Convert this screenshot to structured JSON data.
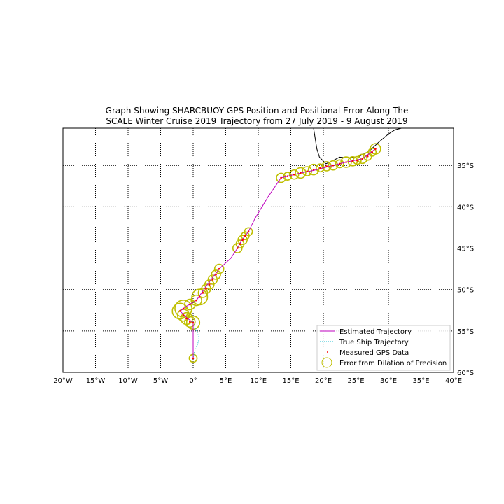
{
  "chart_data": {
    "type": "map",
    "title": "Graph Showing SHARCBUOY GPS Position and Positional Error Along The SCALE Winter Cruise 2019 Trajectory from 27 July 2019 - 9 August 2019",
    "title_lines": [
      "Graph Showing SHARCBUOY GPS Position and Positional Error Along The",
      "SCALE Winter Cruise 2019 Trajectory from 27 July 2019 - 9 August 2019"
    ],
    "xlim": [
      -20,
      40
    ],
    "ylim": [
      -60,
      -30.5
    ],
    "x_tick_values": [
      -20,
      -15,
      -10,
      -5,
      0,
      5,
      10,
      15,
      20,
      25,
      30,
      35,
      40
    ],
    "x_tick_labels": [
      "20°W",
      "15°W",
      "10°W",
      "5°W",
      "0°",
      "5°E",
      "10°E",
      "15°E",
      "20°E",
      "25°E",
      "30°E",
      "35°E",
      "40°E"
    ],
    "y_tick_values": [
      -35,
      -40,
      -45,
      -50,
      -55,
      -60
    ],
    "y_tick_labels": [
      "35°S",
      "40°S",
      "45°S",
      "50°S",
      "55°S",
      "60°S"
    ],
    "grid": true,
    "legend_position": "lower-right",
    "series": [
      {
        "name": "Estimated Trajectory",
        "kind": "line",
        "color": "#bf00bf",
        "x": [
          28.0,
          26.0,
          23.5,
          21.0,
          18.5,
          16.0,
          13.5,
          11.5,
          9.5,
          8.5,
          7.5,
          6.8,
          5.8,
          4.0,
          2.0,
          0.5,
          -1.0,
          -2.0,
          -1.0,
          0.0,
          0.0
        ],
        "y": [
          -33.0,
          -34.2,
          -34.6,
          -35.1,
          -35.6,
          -36.0,
          -36.5,
          -38.8,
          -41.4,
          -43.0,
          -44.0,
          -45.0,
          -46.2,
          -47.5,
          -49.6,
          -51.3,
          -52.0,
          -52.6,
          -53.4,
          -54.0,
          -58.3
        ]
      },
      {
        "name": "True Ship Trajectory",
        "kind": "dotted-line",
        "color": "#17becf",
        "x": [
          0.0,
          0.3,
          0.7,
          0.9,
          0.6,
          0.2,
          0.0
        ],
        "y": [
          -54.0,
          -54.6,
          -55.3,
          -56.0,
          -56.8,
          -57.5,
          -58.3
        ]
      },
      {
        "name": "Measured GPS Data",
        "kind": "points",
        "color": "#ff0000",
        "x": [
          28.0,
          27.5,
          26.8,
          26.0,
          25.2,
          24.5,
          23.5,
          22.5,
          21.5,
          20.5,
          19.5,
          18.5,
          17.5,
          16.5,
          15.5,
          14.5,
          13.5,
          8.5,
          8.0,
          7.6,
          7.2,
          6.8,
          4.0,
          3.5,
          3.0,
          2.5,
          2.0,
          1.5,
          1.0,
          0.5,
          -0.5,
          -1.5,
          -2.0,
          -1.5,
          -1.0,
          -0.5,
          0.0,
          0.0
        ],
        "y": [
          -33.0,
          -33.4,
          -33.9,
          -34.2,
          -34.4,
          -34.5,
          -34.6,
          -34.8,
          -35.0,
          -35.1,
          -35.3,
          -35.5,
          -35.7,
          -35.9,
          -36.1,
          -36.3,
          -36.5,
          -43.0,
          -43.5,
          -44.0,
          -44.5,
          -45.0,
          -47.5,
          -48.2,
          -48.8,
          -49.4,
          -49.9,
          -50.4,
          -50.9,
          -51.3,
          -51.8,
          -52.3,
          -52.6,
          -53.1,
          -53.5,
          -53.9,
          -54.0,
          -58.3
        ]
      },
      {
        "name": "Error from Dilation of Precision",
        "kind": "circles",
        "color": "#bfbf00",
        "x": [
          28.0,
          27.5,
          26.8,
          26.0,
          25.2,
          24.5,
          23.5,
          22.5,
          21.5,
          20.5,
          19.5,
          18.5,
          17.5,
          16.5,
          15.5,
          14.5,
          13.5,
          8.5,
          8.0,
          7.6,
          7.2,
          6.8,
          4.0,
          3.5,
          3.0,
          2.5,
          2.0,
          1.5,
          1.0,
          0.5,
          -0.5,
          -1.5,
          -2.0,
          -1.5,
          -1.0,
          -0.5,
          0.0,
          0.0
        ],
        "y": [
          -33.0,
          -33.4,
          -33.9,
          -34.2,
          -34.4,
          -34.5,
          -34.6,
          -34.8,
          -35.0,
          -35.1,
          -35.3,
          -35.5,
          -35.7,
          -35.9,
          -36.1,
          -36.3,
          -36.5,
          -43.0,
          -43.5,
          -44.0,
          -44.5,
          -45.0,
          -47.5,
          -48.2,
          -48.8,
          -49.4,
          -49.9,
          -50.4,
          -50.9,
          -51.3,
          -51.8,
          -52.3,
          -52.6,
          -53.1,
          -53.5,
          -53.9,
          -54.0,
          -58.3
        ],
        "error_deg": [
          0.8,
          0.6,
          0.6,
          0.7,
          0.6,
          0.7,
          0.8,
          0.6,
          0.7,
          0.7,
          0.6,
          0.8,
          0.7,
          0.8,
          0.7,
          0.6,
          0.7,
          0.6,
          0.6,
          0.7,
          0.6,
          0.7,
          0.7,
          0.7,
          0.7,
          0.7,
          0.7,
          0.7,
          1.2,
          0.8,
          0.8,
          1.3,
          1.2,
          0.9,
          0.9,
          0.8,
          1.0,
          0.6
        ]
      }
    ],
    "coastline": {
      "color": "#000000",
      "x": [
        18.5,
        18.8,
        19.0,
        19.4,
        19.9,
        20.4,
        21.5,
        22.5,
        24.0,
        25.5,
        27.0,
        28.5,
        30.0,
        31.0,
        32.0
      ],
      "y": [
        -30.5,
        -32.0,
        -33.0,
        -34.0,
        -34.4,
        -34.8,
        -34.4,
        -34.0,
        -34.1,
        -33.9,
        -33.3,
        -32.2,
        -31.2,
        -30.7,
        -30.5
      ]
    }
  }
}
